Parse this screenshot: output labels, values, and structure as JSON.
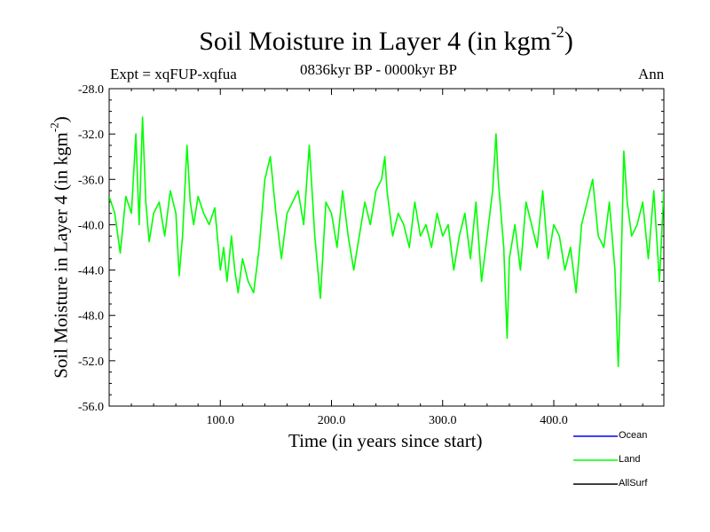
{
  "chart_data": {
    "type": "line",
    "title_main": "Soil Moisture in Layer 4 (in kgm",
    "title_sup": "-2",
    "title_close": ")",
    "subtitle_left": "Expt = xqFUP-xqfua",
    "subtitle_center": "0836kyr BP - 0000kyr BP",
    "subtitle_right": "Ann",
    "xlabel": "Time (in years since start)",
    "ylabel_main": "Soil Moisture in Layer 4 (in kgm",
    "ylabel_sup": "-2",
    "ylabel_close": ")",
    "xlim": [
      0,
      499
    ],
    "ylim": [
      -56,
      -28
    ],
    "xticks": [
      100,
      200,
      300,
      400
    ],
    "xtick_labels": [
      "100.0",
      "200.0",
      "300.0",
      "400.0"
    ],
    "yticks": [
      -28,
      -32,
      -36,
      -40,
      -44,
      -48,
      -52,
      -56
    ],
    "ytick_labels": [
      "-28.0",
      "-32.0",
      "-36.0",
      "-40.0",
      "-44.0",
      "-48.0",
      "-52.0",
      "-56.0"
    ],
    "legend": [
      {
        "name": "Ocean",
        "color": "#0000ff"
      },
      {
        "name": "Land",
        "color": "#00ff00"
      },
      {
        "name": "AllSurf",
        "color": "#000000"
      }
    ],
    "series": [
      {
        "name": "Land",
        "color": "#00ff00",
        "x": [
          0,
          5,
          10,
          15,
          20,
          24,
          27,
          30,
          33,
          36,
          40,
          45,
          50,
          55,
          60,
          63,
          66,
          70,
          73,
          76,
          80,
          85,
          90,
          95,
          100,
          103,
          106,
          110,
          113,
          116,
          120,
          125,
          130,
          135,
          140,
          145,
          150,
          155,
          160,
          165,
          170,
          175,
          180,
          185,
          190,
          195,
          200,
          205,
          210,
          215,
          220,
          225,
          230,
          235,
          240,
          245,
          248,
          250,
          255,
          260,
          265,
          270,
          275,
          280,
          285,
          290,
          295,
          300,
          305,
          310,
          315,
          320,
          325,
          330,
          335,
          340,
          345,
          348,
          350,
          355,
          358,
          360,
          365,
          370,
          375,
          380,
          385,
          390,
          395,
          400,
          405,
          410,
          415,
          420,
          425,
          430,
          435,
          440,
          445,
          450,
          455,
          458,
          460,
          463,
          466,
          470,
          475,
          480,
          485,
          490,
          495,
          499
        ],
        "y": [
          -37.5,
          -39,
          -42.5,
          -37.5,
          -39,
          -32,
          -40,
          -30.5,
          -38,
          -41.5,
          -39,
          -38,
          -41,
          -37,
          -39,
          -44.5,
          -41,
          -33,
          -38,
          -40,
          -37.5,
          -39,
          -40,
          -38.5,
          -44,
          -42,
          -45,
          -41,
          -44,
          -46,
          -43,
          -45,
          -46,
          -42,
          -36,
          -34,
          -39,
          -43,
          -39,
          -38,
          -37,
          -40,
          -33,
          -41,
          -46.5,
          -38,
          -39,
          -42,
          -37,
          -41,
          -44,
          -41,
          -38,
          -40,
          -37,
          -36,
          -34,
          -37,
          -41,
          -39,
          -40,
          -42,
          -38,
          -41,
          -40,
          -42,
          -39,
          -41,
          -40,
          -44,
          -41,
          -39,
          -43,
          -38,
          -45,
          -41,
          -37,
          -32,
          -36,
          -42,
          -50,
          -43,
          -40,
          -44,
          -38,
          -40,
          -42,
          -37,
          -43,
          -40,
          -41,
          -44,
          -42,
          -46,
          -40,
          -38,
          -36,
          -41,
          -42,
          -38,
          -44,
          -52.5,
          -46,
          -33.5,
          -38,
          -41,
          -40,
          -38,
          -43,
          -37,
          -45,
          -37
        ]
      }
    ]
  }
}
